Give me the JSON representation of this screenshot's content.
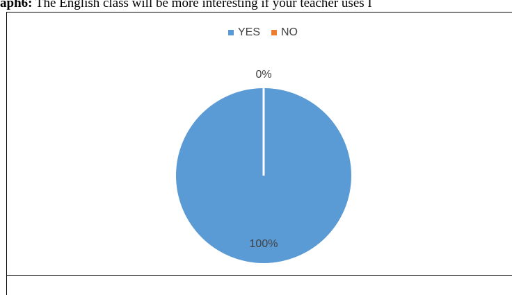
{
  "caption": {
    "prefix": "aph6:",
    "text": "The English class will be more interesting if your teacher uses I"
  },
  "chart_data": {
    "type": "pie",
    "categories": [
      "YES",
      "NO"
    ],
    "values": [
      100,
      0
    ],
    "data_labels": [
      "100%",
      "0%"
    ],
    "colors": [
      "#5b9bd5",
      "#ed7d31"
    ],
    "legend_position": "top"
  }
}
